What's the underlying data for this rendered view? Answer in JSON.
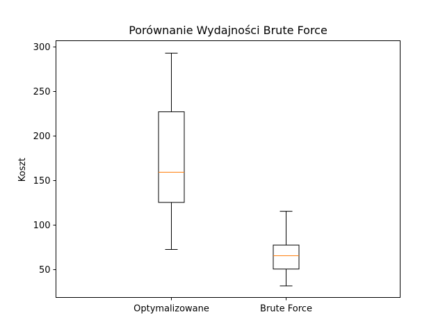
{
  "chart_data": {
    "type": "box",
    "title": "Porównanie Wydajności Brute Force",
    "xlabel": "",
    "ylabel": "Koszt",
    "ylim": [
      18,
      307
    ],
    "yticks": [
      50,
      100,
      150,
      200,
      250,
      300
    ],
    "grid": false,
    "categories": [
      "Optymalizowane",
      "Brute Force"
    ],
    "boxes": [
      {
        "min": 72,
        "q1": 125,
        "median": 159,
        "q3": 227,
        "max": 293
      },
      {
        "min": 31,
        "q1": 50,
        "median": 65,
        "q3": 77,
        "max": 115
      }
    ],
    "colors": {
      "box": "#000000",
      "median": "#ff7f0e"
    }
  }
}
